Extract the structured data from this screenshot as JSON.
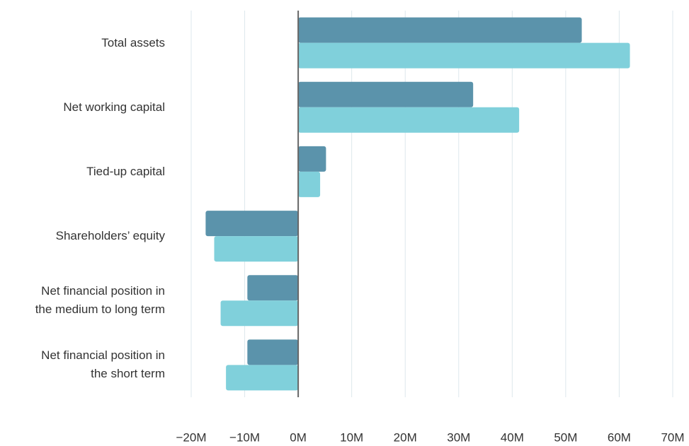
{
  "chart_data": {
    "type": "hbar",
    "categories": [
      "Total assets",
      "Net working capital",
      "Tied-up capital",
      "Shareholders’ equity",
      "Net financial position in\nthe medium to long term",
      "Net financial position in\nthe short term"
    ],
    "series": [
      {
        "color": "#5b93ab",
        "values": [
          53,
          32.7,
          5.2,
          -17.3,
          -9.5,
          -9.5
        ]
      },
      {
        "color": "#80d0db",
        "values": [
          62,
          41.3,
          4.1,
          -15.7,
          -14.5,
          -13.5
        ]
      }
    ],
    "xlim": [
      -20,
      70
    ],
    "xticks": [
      {
        "value": -20,
        "label": "−20M"
      },
      {
        "value": -10,
        "label": "−10M"
      },
      {
        "value": 0,
        "label": "0M"
      },
      {
        "value": 10,
        "label": "10M"
      },
      {
        "value": 20,
        "label": "20M"
      },
      {
        "value": 30,
        "label": "30M"
      },
      {
        "value": 40,
        "label": "40M"
      },
      {
        "value": 50,
        "label": "50M"
      },
      {
        "value": 60,
        "label": "60M"
      },
      {
        "value": 70,
        "label": "70M"
      }
    ],
    "grid": true
  }
}
